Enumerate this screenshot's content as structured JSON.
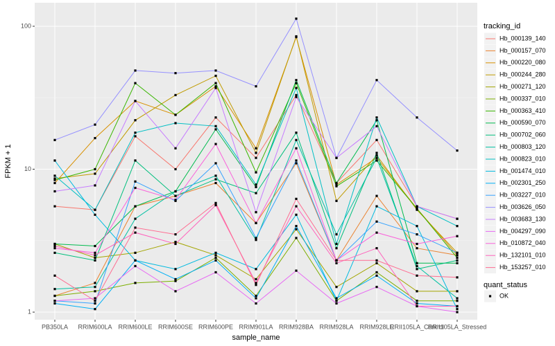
{
  "chart_data": {
    "type": "line",
    "log_y": true,
    "grid": true,
    "legend_position": "right",
    "x_label": "sample_name",
    "y_label": "FPKM + 1",
    "legend_title": "tracking_id",
    "point_legend": {
      "title": "quant_status",
      "labels": [
        "OK"
      ],
      "color": "#000000"
    },
    "categories": [
      "PB350LA",
      "RRIM600LA",
      "RRIM600LE",
      "RRIM600SE",
      "RRIM600PE",
      "RRIM901LA",
      "RRIM928BA",
      "RRIM928LA",
      "RRIM928LE",
      "RRII105LA_Control",
      "RRII105LA_Stressed"
    ],
    "ylim": [
      0.885,
      146
    ],
    "yticks": [
      1,
      10,
      100
    ],
    "series": [
      {
        "name": "Hb_000139_140",
        "color": "#F8766D",
        "values": [
          5.5,
          5.2,
          17,
          10,
          23,
          12,
          33,
          8,
          16,
          5.5,
          4.5
        ]
      },
      {
        "name": "Hb_000157_070",
        "color": "#EA8331",
        "values": [
          1.3,
          1.6,
          5.5,
          6.5,
          8,
          4.2,
          11,
          2.3,
          6.5,
          2.8,
          2.5
        ]
      },
      {
        "name": "Hb_000220_080",
        "color": "#D89000",
        "values": [
          8.0,
          16.5,
          30,
          24,
          38,
          14,
          84,
          7.8,
          12,
          5.3,
          2.5
        ]
      },
      {
        "name": "Hb_000244_280",
        "color": "#C09B00",
        "values": [
          8.6,
          9.3,
          22,
          33,
          45,
          13,
          85,
          6,
          12.5,
          5.2,
          2.6
        ]
      },
      {
        "name": "Hb_000271_120",
        "color": "#A3A500",
        "values": [
          3.0,
          2.4,
          2.6,
          3.1,
          2.5,
          1.7,
          3.8,
          1.5,
          2.2,
          1.4,
          1.4
        ]
      },
      {
        "name": "Hb_000337_010",
        "color": "#7CAE00",
        "values": [
          1.3,
          1.4,
          1.6,
          1.65,
          2.4,
          1.3,
          3.3,
          1.2,
          1.9,
          1.2,
          1.2
        ]
      },
      {
        "name": "Hb_000363_410",
        "color": "#39B600",
        "values": [
          8.4,
          10,
          40,
          24,
          40,
          9.5,
          40,
          7.6,
          11.5,
          5.3,
          2.4
        ]
      },
      {
        "name": "Hb_000590_070",
        "color": "#00BB4E",
        "values": [
          3.0,
          2.9,
          5.5,
          7,
          19,
          7.5,
          42,
          8,
          22,
          2.2,
          2.2
        ]
      },
      {
        "name": "Hb_000702_060",
        "color": "#00BF7D",
        "values": [
          2.6,
          2.3,
          11.5,
          6.5,
          8.5,
          6.8,
          18,
          2.8,
          13,
          2.0,
          2.3
        ]
      },
      {
        "name": "Hb_000803_120",
        "color": "#00C1A3",
        "values": [
          1.45,
          1.5,
          4.5,
          7,
          9,
          3.2,
          16,
          3.5,
          12,
          2.1,
          1.25
        ]
      },
      {
        "name": "Hb_000823_010",
        "color": "#00BFC4",
        "values": [
          9.0,
          5.2,
          18,
          21,
          20,
          7.8,
          37,
          3.0,
          23,
          5.5,
          4.0
        ]
      },
      {
        "name": "Hb_001474_010",
        "color": "#00BAE0",
        "values": [
          11.5,
          4.8,
          2.3,
          2.0,
          2.6,
          2.0,
          4.8,
          1.2,
          5.5,
          4.0,
          1.05
        ]
      },
      {
        "name": "Hb_002301_250",
        "color": "#00B0F6",
        "values": [
          1.15,
          1.05,
          2.3,
          1.7,
          2.3,
          1.25,
          4.0,
          1.25,
          1.8,
          1.15,
          1.1
        ]
      },
      {
        "name": "Hb_003227_010",
        "color": "#35A2FF",
        "values": [
          1.2,
          1.15,
          8.2,
          6.0,
          11,
          3.3,
          11.5,
          2.3,
          4.3,
          3.5,
          2.6
        ]
      },
      {
        "name": "Hb_003626_050",
        "color": "#9590FF",
        "values": [
          16,
          20.5,
          49,
          47,
          49,
          38,
          113,
          12,
          42,
          23,
          13.5
        ]
      },
      {
        "name": "Hb_003683_130",
        "color": "#C77CFF",
        "values": [
          7.0,
          7.7,
          30,
          14,
          37,
          5.0,
          32,
          12,
          20,
          5.5,
          4.5
        ]
      },
      {
        "name": "Hb_004297_090",
        "color": "#E76BF3",
        "values": [
          1.2,
          1.25,
          2.1,
          1.4,
          1.9,
          1.15,
          1.95,
          1.15,
          1.5,
          1.1,
          1.0
        ]
      },
      {
        "name": "Hb_010872_040",
        "color": "#FA62DB",
        "values": [
          2.8,
          2.6,
          7.4,
          6.1,
          15,
          4.2,
          14,
          2.3,
          3.6,
          3.0,
          3.4
        ]
      },
      {
        "name": "Hb_132101_010",
        "color": "#FF62BC",
        "values": [
          2.9,
          2.5,
          3.6,
          3.0,
          5.6,
          1.6,
          5.5,
          2.2,
          2.8,
          1.1,
          1.1
        ]
      },
      {
        "name": "Hb_153257_010",
        "color": "#FF6C91",
        "values": [
          1.8,
          1.2,
          3.9,
          3.5,
          5.8,
          1.55,
          6.2,
          2.3,
          2.3,
          1.8,
          1.75
        ]
      }
    ]
  }
}
